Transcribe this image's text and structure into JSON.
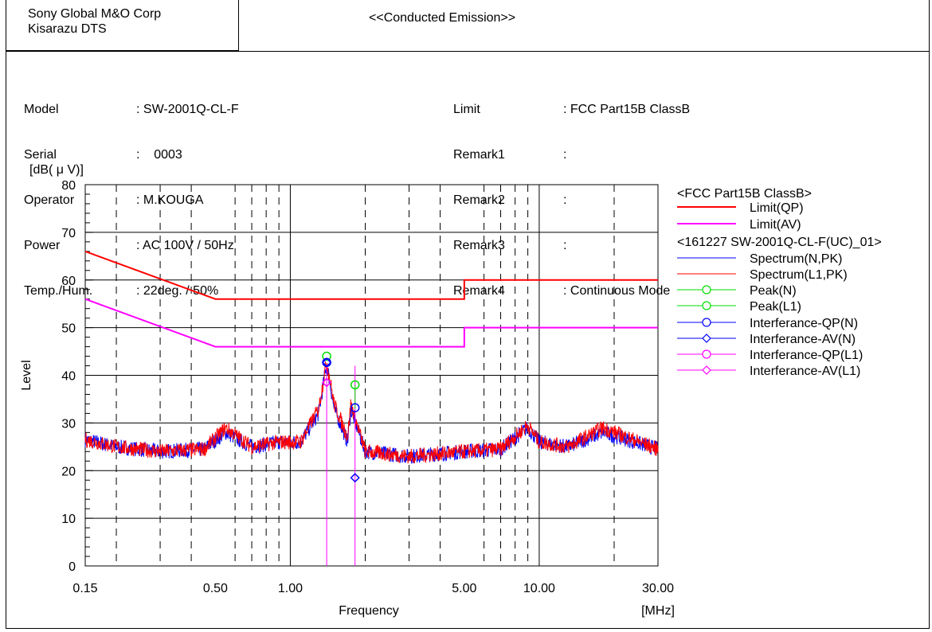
{
  "header": {
    "company_line1": "Sony Global M&O Corp",
    "company_line2": "Kisarazu DTS",
    "title": "<<Conducted Emission>>"
  },
  "info_left": [
    {
      "label": "Model",
      "value": ": SW-2001Q-CL-F"
    },
    {
      "label": "Serial",
      "value": ":    0003"
    },
    {
      "label": "Operator",
      "value": ": M.KOUGA"
    },
    {
      "label": "Power",
      "value": ": AC 100V / 50Hz"
    },
    {
      "label": "Temp./Hum.",
      "value": ": 22deg. / 50%"
    }
  ],
  "info_right": [
    {
      "label": "Limit",
      "value": ": FCC Part15B ClassB"
    },
    {
      "label": "Remark1",
      "value": ":"
    },
    {
      "label": "Remark2",
      "value": ":"
    },
    {
      "label": "Remark3",
      "value": ":"
    },
    {
      "label": "Remark4",
      "value": ": Continuous Mode"
    }
  ],
  "colors": {
    "limit_qp": "#ff0000",
    "limit_av": "#ff00ff",
    "spectrum_n": "#0000ff",
    "spectrum_l1": "#ff0000",
    "peak": "#00dd00",
    "interference_n": "#0000ff",
    "interference_l1": "#ff00ff"
  },
  "chart_data": {
    "type": "line",
    "xscale": "log",
    "xlabel": "Frequency",
    "xunit": "[MHz]",
    "ylabel": "Level",
    "yunit": "[dB( μ V)]",
    "xlim": [
      0.15,
      30
    ],
    "ylim": [
      0,
      80
    ],
    "x_tick_labels": [
      "0.15",
      "0.50",
      "1.00",
      "5.00",
      "10.00",
      "30.00"
    ],
    "x_tick_values": [
      0.15,
      0.5,
      1,
      5,
      10,
      30
    ],
    "y_tick_labels": [
      "0",
      "10",
      "20",
      "30",
      "40",
      "50",
      "60",
      "70",
      "80"
    ],
    "grid": true,
    "legend_placement": "right",
    "legend_group1": "<FCC Part15B ClassB>",
    "legend_group2": "<161227 SW-2001Q-CL-F(UC)_01>",
    "series": [
      {
        "name": "Limit(QP)",
        "x": [
          0.15,
          0.5,
          5,
          5,
          30
        ],
        "y": [
          66,
          56,
          56,
          60,
          60
        ]
      },
      {
        "name": "Limit(AV)",
        "x": [
          0.15,
          0.5,
          5,
          5,
          30
        ],
        "y": [
          56,
          46,
          46,
          50,
          50
        ]
      },
      {
        "name": "Spectrum(N,PK)",
        "x": [
          0.15,
          0.2,
          0.3,
          0.45,
          0.55,
          0.7,
          0.9,
          1.1,
          1.3,
          1.4,
          1.5,
          1.7,
          1.75,
          2,
          3,
          5,
          7,
          9,
          10,
          13,
          18,
          30
        ],
        "y": [
          26.5,
          25,
          24,
          24.5,
          28,
          25,
          26,
          26,
          32,
          42.5,
          33,
          26,
          33,
          24,
          23,
          24,
          24.5,
          29,
          26,
          25,
          28,
          24.5
        ]
      },
      {
        "name": "Spectrum(L1,PK)",
        "x": [
          0.15,
          0.2,
          0.3,
          0.45,
          0.55,
          0.7,
          0.9,
          1.1,
          1.3,
          1.4,
          1.5,
          1.7,
          1.75,
          2,
          3,
          5,
          7,
          9,
          10,
          13,
          18,
          30
        ],
        "y": [
          26.5,
          25,
          24,
          24.5,
          29,
          25,
          26,
          26,
          33,
          43,
          34,
          27,
          34,
          24,
          23,
          24,
          24.5,
          29.5,
          26,
          25,
          29,
          24.5
        ]
      }
    ],
    "markers": [
      {
        "name": "Peak(N)",
        "points": [
          {
            "x": 1.4,
            "y": 44
          },
          {
            "x": 1.82,
            "y": 38
          }
        ]
      },
      {
        "name": "Interferance-QP(N)",
        "points": [
          {
            "x": 1.4,
            "y": 42.7
          },
          {
            "x": 1.82,
            "y": 33.2
          }
        ]
      },
      {
        "name": "Interferance-AV(N)",
        "points": [
          {
            "x": 1.4,
            "y": 42.7
          },
          {
            "x": 1.82,
            "y": 18.5
          }
        ]
      },
      {
        "name": "Interferance-AV(L1)",
        "points": [
          {
            "x": 1.4,
            "y": 38.5
          }
        ]
      }
    ],
    "legend": [
      {
        "label": "Limit(QP)",
        "style": "line",
        "color": "#ff0000"
      },
      {
        "label": "Limit(AV)",
        "style": "line",
        "color": "#ff00ff"
      },
      {
        "label": "Spectrum(N,PK)",
        "style": "thin",
        "color": "#0000ff"
      },
      {
        "label": "Spectrum(L1,PK)",
        "style": "thin",
        "color": "#ff0000"
      },
      {
        "label": "Peak(N)",
        "style": "circle",
        "color": "#00dd00"
      },
      {
        "label": "Peak(L1)",
        "style": "circle",
        "color": "#00dd00"
      },
      {
        "label": "Interferance-QP(N)",
        "style": "circle",
        "color": "#0000ff"
      },
      {
        "label": "Interferance-AV(N)",
        "style": "diamond",
        "color": "#0000ff"
      },
      {
        "label": "Interferance-QP(L1)",
        "style": "circle",
        "color": "#ff00ff"
      },
      {
        "label": "Interferance-AV(L1)",
        "style": "diamond",
        "color": "#ff00ff"
      }
    ]
  }
}
